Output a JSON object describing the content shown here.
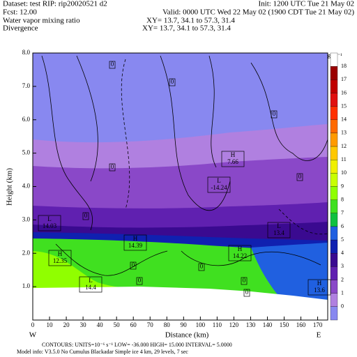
{
  "header": {
    "dataset": "Dataset: test   RIP: rip20020521  d2",
    "init": "Init: 1200 UTC Tue 21 May 02",
    "fcst": "Fcst:    12.00",
    "valid": "Valid: 0000 UTC Wed 22 May 02 (1900 CDT Tue 21 May 02)",
    "field1": "Water vapor mixing ratio",
    "xy1": "XY=   13.7, 34.1 to   57.3, 31.4",
    "field2": "Divergence",
    "xy2": "XY=   13.7, 34.1 to   57.3, 31.4"
  },
  "chart_data": {
    "type": "contour",
    "xlabel": "Distance (km)",
    "ylabel": "Height (km)",
    "xlim": [
      0,
      176
    ],
    "xticks": [
      0,
      10,
      20,
      30,
      40,
      50,
      60,
      70,
      80,
      90,
      100,
      110,
      120,
      130,
      140,
      150,
      160,
      170
    ],
    "ylim": [
      0,
      8
    ],
    "yticks": [
      {
        "value": 1,
        "label": "1.0"
      },
      {
        "value": 2,
        "label": "2.0"
      },
      {
        "value": 3,
        "label": "3.0"
      },
      {
        "value": 4,
        "label": "4.0"
      },
      {
        "value": 5,
        "label": "5.0"
      },
      {
        "value": 6,
        "label": "6.0"
      },
      {
        "value": 7,
        "label": "7.0"
      },
      {
        "value": 8,
        "label": "8.0"
      }
    ],
    "x_end_labels": [
      "W",
      "E"
    ],
    "colorbar": {
      "unit": "g kg⁻¹",
      "levels": [
        18,
        17,
        16,
        15,
        14,
        13,
        12,
        11,
        10,
        9,
        8,
        7,
        6,
        5,
        4,
        3,
        2,
        1,
        0
      ],
      "colors": [
        "#9a0000",
        "#c00000",
        "#e01010",
        "#ff3000",
        "#ff6a00",
        "#ff9a00",
        "#ffc800",
        "#f0f000",
        "#c8ff00",
        "#90ff00",
        "#40e020",
        "#10c040",
        "#2060e0",
        "#1020b0",
        "#3a0a90",
        "#6020b0",
        "#8a48c8",
        "#b080e0",
        "#8888f0"
      ]
    },
    "extrema": [
      {
        "kind": "H",
        "value": "7.66"
      },
      {
        "kind": "L",
        "value": "-14.24"
      },
      {
        "kind": "L",
        "value": "14.03"
      },
      {
        "kind": "H",
        "value": "14.39"
      },
      {
        "kind": "H",
        "value": "12.35"
      },
      {
        "kind": "L",
        "value": "14.4"
      },
      {
        "kind": "H",
        "value": "14.22"
      },
      {
        "kind": "L",
        "value": "13.4"
      },
      {
        "kind": "H",
        "value": "13.6"
      }
    ],
    "zero_labels": [
      "0",
      "0",
      "0",
      "0",
      "0",
      "0",
      "0",
      "0",
      "0",
      "0",
      "0"
    ]
  },
  "footer": {
    "contours": "CONTOURS:  UNITS=10⁻⁶ s⁻¹   LOW=  -36.000      HIGH=  15.000      INTERVAL=   5.0000",
    "model": "Model info: V3.5.0 No Cumulus Blackadar  Simple ice    4 km,  29 levels,    7 sec"
  }
}
